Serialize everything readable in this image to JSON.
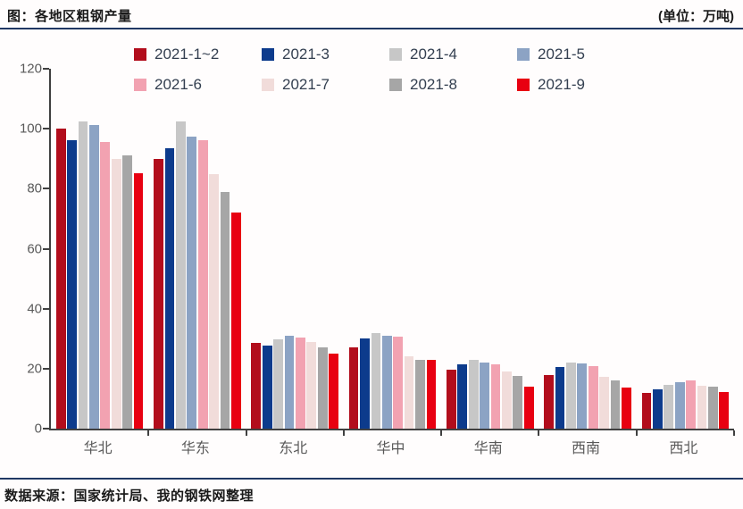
{
  "header": {
    "title": "图：各地区粗钢产量",
    "unit": "(单位：万吨)"
  },
  "footer": {
    "source": "数据来源：国家统计局、我的钢铁网整理"
  },
  "colors": {
    "rule_navy": "#203864",
    "axis_line": "#404040",
    "axis_text": "#595959",
    "legend_text": "#333f50",
    "title_text": "#1a1a1a"
  },
  "chart_data": {
    "type": "bar",
    "title": "图：各地区粗钢产量",
    "unit_label": "(单位：万吨)",
    "xlabel": "",
    "ylabel": "",
    "ylim": [
      0,
      120
    ],
    "yticks": [
      0,
      20,
      40,
      60,
      80,
      100,
      120
    ],
    "grid": false,
    "legend_position": "top",
    "categories": [
      "华北",
      "华东",
      "东北",
      "华中",
      "华南",
      "西南",
      "西北"
    ],
    "series": [
      {
        "name": "2021-1~2",
        "color": "#b20d1c",
        "values": [
          100,
          90,
          28.7,
          27,
          19.8,
          18,
          12
        ]
      },
      {
        "name": "2021-3",
        "color": "#0d3b8c",
        "values": [
          96.3,
          93.5,
          27.7,
          30,
          21.4,
          20.5,
          13
        ]
      },
      {
        "name": "2021-4",
        "color": "#c7c7c7",
        "values": [
          102.3,
          102.5,
          29.8,
          31.8,
          22.8,
          22,
          14.5
        ]
      },
      {
        "name": "2021-5",
        "color": "#8ca3c4",
        "values": [
          101.2,
          97.5,
          31,
          31,
          22,
          21.7,
          15.4
        ]
      },
      {
        "name": "2021-6",
        "color": "#f2a2b1",
        "values": [
          95.6,
          96.2,
          30.5,
          30.8,
          21.5,
          20.8,
          16.2
        ]
      },
      {
        "name": "2021-7",
        "color": "#f1dcda",
        "values": [
          90,
          84.8,
          29,
          24.2,
          19,
          17.3,
          14.3
        ]
      },
      {
        "name": "2021-8",
        "color": "#a6a6a6",
        "values": [
          91.2,
          79,
          27,
          22.8,
          17.6,
          16.1,
          14
        ]
      },
      {
        "name": "2021-9",
        "color": "#e80011",
        "values": [
          85.2,
          72,
          24.9,
          23,
          14.1,
          13.8,
          12.2
        ]
      }
    ]
  }
}
